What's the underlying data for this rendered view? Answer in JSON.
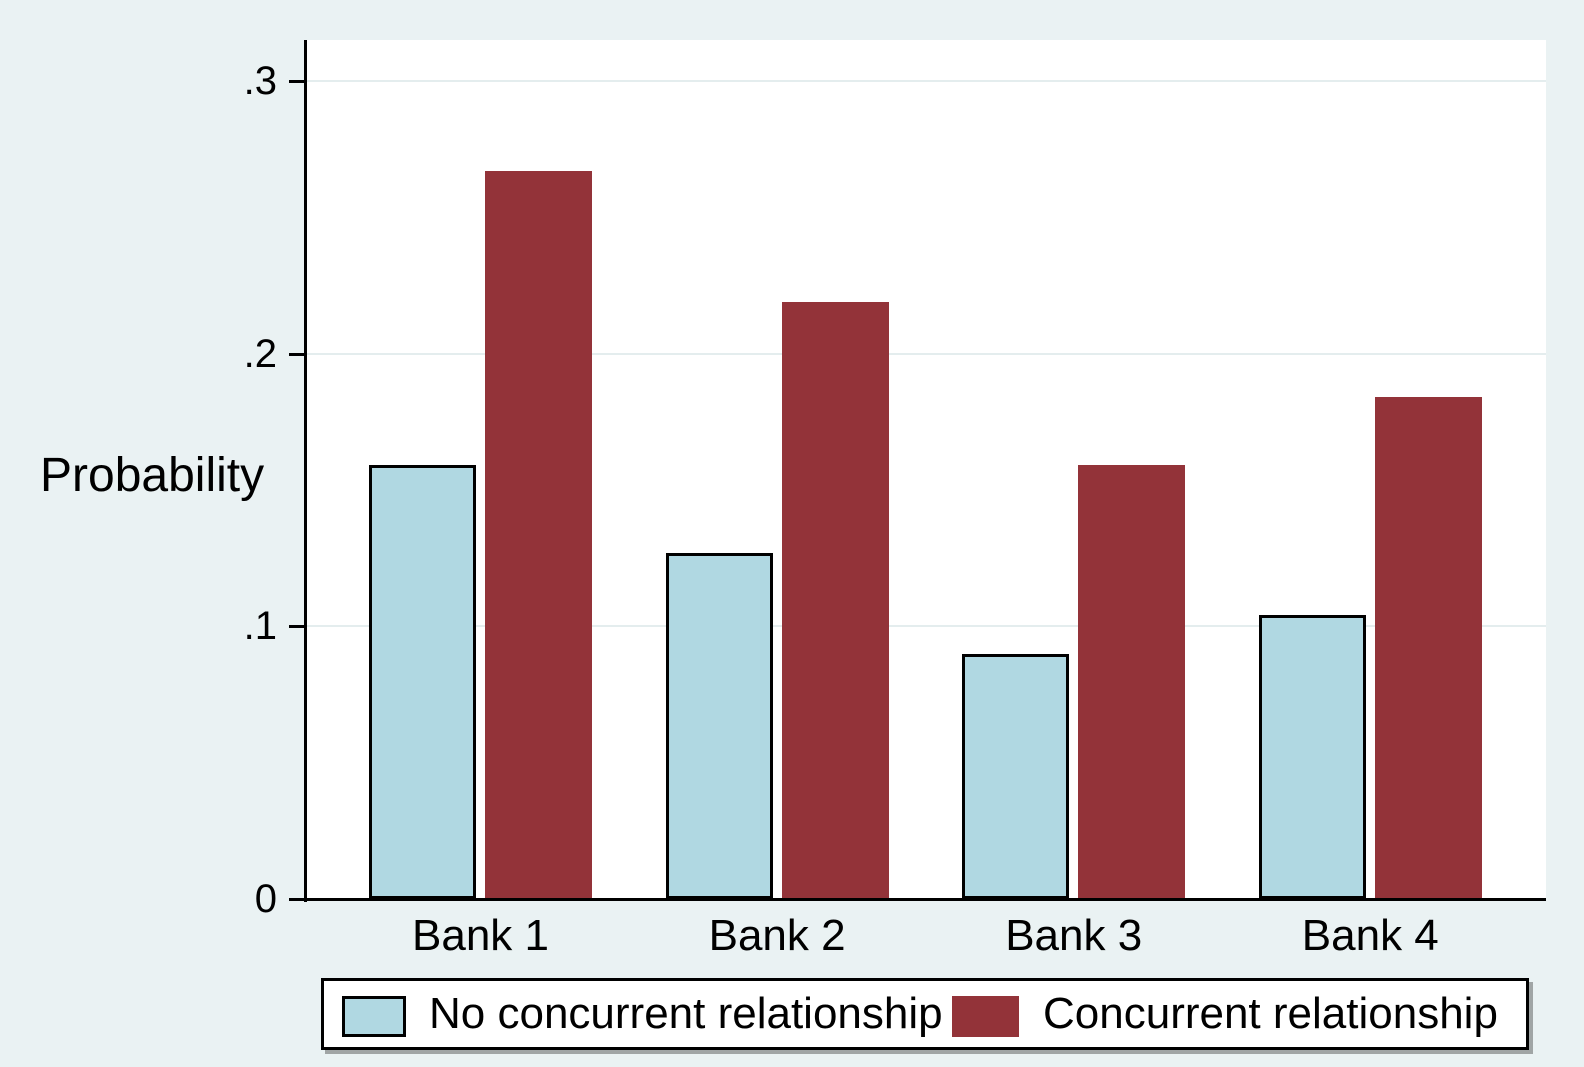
{
  "chart_data": {
    "type": "bar",
    "title": "",
    "categories": [
      "Bank 1",
      "Bank 2",
      "Bank 3",
      "Bank 4"
    ],
    "series": [
      {
        "name": "No concurrent relationship",
        "color": "#b0d8e2",
        "outline": "#000000",
        "values": [
          0.159,
          0.127,
          0.09,
          0.104
        ]
      },
      {
        "name": "Concurrent relationship",
        "color": "#933339",
        "outline": "#933339",
        "values": [
          0.267,
          0.219,
          0.159,
          0.184
        ]
      }
    ],
    "xlabel": "",
    "ylabel": "Probability",
    "yticks": [
      0,
      0.1,
      0.2,
      0.3
    ],
    "ytick_labels": [
      "0",
      ".1",
      ".2",
      ".3"
    ],
    "ylim": [
      0,
      0.315
    ],
    "grid": true,
    "legend_position": "bottom"
  },
  "colors": {
    "page_background": "#eaf2f3",
    "plot_background": "#ffffff",
    "gridline": "#e4edee",
    "axis": "#000000",
    "legend_background": "#ffffff",
    "legend_border": "#000000"
  }
}
